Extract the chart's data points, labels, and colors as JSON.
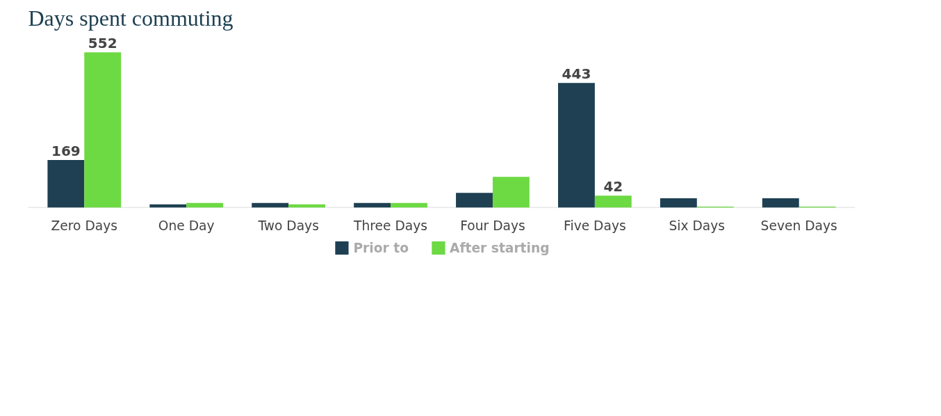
{
  "chart_data": {
    "type": "bar",
    "title": "Days spent commuting",
    "categories": [
      "Zero Days",
      "One Day",
      "Two Days",
      "Three Days",
      "Four Days",
      "Five Days",
      "Six Days",
      "Seven Days"
    ],
    "series": [
      {
        "name": "Prior to",
        "color": "#1e4052",
        "values": [
          169,
          11,
          16,
          16,
          52,
          443,
          33,
          33
        ],
        "value_labels": [
          "169",
          null,
          null,
          null,
          null,
          "443",
          null,
          null
        ]
      },
      {
        "name": "After starting",
        "color": "#6dd943",
        "values": [
          552,
          16,
          11,
          16,
          109,
          42,
          3,
          3
        ],
        "value_labels": [
          "552",
          null,
          null,
          null,
          null,
          "42",
          null,
          null
        ]
      }
    ],
    "legend": "bottom"
  }
}
